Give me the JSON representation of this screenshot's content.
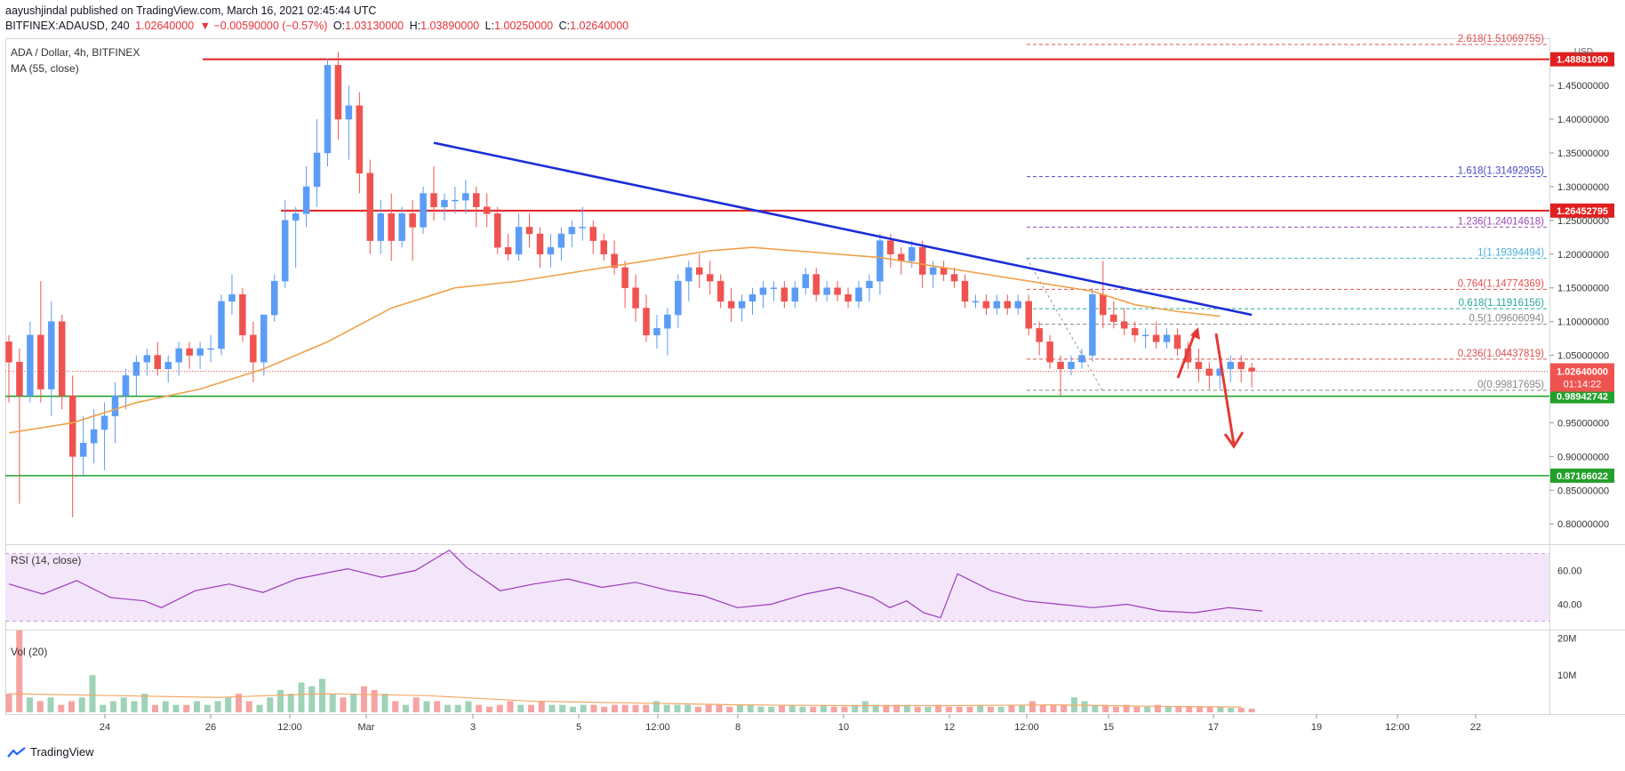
{
  "header": {
    "published_line": "aayushjindal published on TradingView.com, March 16, 2021 02:45:44 UTC",
    "symbol": "BITFINEX:ADAUSD, 240",
    "last": "1.02640000",
    "change": "▼ −0.00590000 (−0.57%)",
    "o_label": "O:",
    "o": "1.03130000",
    "h_label": "H:",
    "h": "1.03890000",
    "l_label": "L:",
    "l": "1.00250000",
    "c_label": "C:",
    "c": "1.02640000"
  },
  "legend": {
    "title": "ADA / Dollar, 4h, BITFINEX",
    "ma": "MA (55, close)",
    "rsi": "RSI (14, close)",
    "vol": "Vol (20)",
    "currency": "USD"
  },
  "footer": {
    "brand": "TradingView"
  },
  "colors": {
    "up": "#5b9cf6",
    "down": "#ef5350",
    "ma": "#f0a14a",
    "trend": "#1b2fd6",
    "resistance": "#e02020",
    "support": "#22a02a",
    "rsi": "#9c3ab8",
    "rsi_band": "#f3e6fb",
    "vol_up": "#9fd3b8",
    "vol_down": "#f6a3a3",
    "vol_ma": "#f3a866",
    "axis_text": "#333333"
  },
  "chart_data": [
    {
      "type": "candlestick",
      "title": "ADA / Dollar, 4h, BITFINEX",
      "x_tick_labels": [
        "24",
        "26",
        "12:00",
        "Mar",
        "3",
        "5",
        "12:00",
        "8",
        "10",
        "12",
        "12:00",
        "15",
        "17",
        "19",
        "12:00",
        "22"
      ],
      "y_tick_labels": [
        "1.45000000",
        "1.40000000",
        "1.35000000",
        "1.30000000",
        "1.25000000",
        "1.20000000",
        "1.15000000",
        "1.10000000",
        "1.05000000",
        "1.00000000",
        "0.95000000",
        "0.90000000",
        "0.85000000",
        "0.80000000"
      ],
      "y_unit": "USD",
      "ylim": [
        0.77,
        1.52
      ],
      "candles_ohlc": [
        [
          1.07,
          1.08,
          0.98,
          1.04
        ],
        [
          1.04,
          1.06,
          0.83,
          0.99
        ],
        [
          0.99,
          1.1,
          0.98,
          1.08
        ],
        [
          1.08,
          1.16,
          0.98,
          1.0
        ],
        [
          1.0,
          1.13,
          0.96,
          1.1
        ],
        [
          1.1,
          1.11,
          0.97,
          0.99
        ],
        [
          0.99,
          1.02,
          0.81,
          0.9
        ],
        [
          0.9,
          0.96,
          0.87,
          0.92
        ],
        [
          0.92,
          0.97,
          0.89,
          0.94
        ],
        [
          0.94,
          0.98,
          0.88,
          0.96
        ],
        [
          0.96,
          1.01,
          0.92,
          0.99
        ],
        [
          0.99,
          1.03,
          0.97,
          1.02
        ],
        [
          1.02,
          1.05,
          0.99,
          1.04
        ],
        [
          1.04,
          1.06,
          1.02,
          1.05
        ],
        [
          1.05,
          1.07,
          1.02,
          1.03
        ],
        [
          1.03,
          1.05,
          1.01,
          1.04
        ],
        [
          1.04,
          1.07,
          1.02,
          1.06
        ],
        [
          1.06,
          1.07,
          1.03,
          1.05
        ],
        [
          1.05,
          1.07,
          1.03,
          1.06
        ],
        [
          1.06,
          1.08,
          1.04,
          1.06
        ],
        [
          1.06,
          1.14,
          1.05,
          1.13
        ],
        [
          1.13,
          1.17,
          1.11,
          1.14
        ],
        [
          1.14,
          1.15,
          1.07,
          1.08
        ],
        [
          1.08,
          1.1,
          1.01,
          1.04
        ],
        [
          1.04,
          1.11,
          1.02,
          1.11
        ],
        [
          1.11,
          1.17,
          1.1,
          1.16
        ],
        [
          1.16,
          1.28,
          1.15,
          1.25
        ],
        [
          1.25,
          1.27,
          1.18,
          1.26
        ],
        [
          1.26,
          1.33,
          1.24,
          1.3
        ],
        [
          1.3,
          1.4,
          1.27,
          1.35
        ],
        [
          1.35,
          1.49,
          1.33,
          1.48
        ],
        [
          1.48,
          1.5,
          1.37,
          1.4
        ],
        [
          1.4,
          1.45,
          1.34,
          1.42
        ],
        [
          1.42,
          1.44,
          1.29,
          1.32
        ],
        [
          1.32,
          1.34,
          1.2,
          1.22
        ],
        [
          1.22,
          1.28,
          1.2,
          1.26
        ],
        [
          1.26,
          1.29,
          1.19,
          1.22
        ],
        [
          1.22,
          1.27,
          1.21,
          1.26
        ],
        [
          1.26,
          1.28,
          1.19,
          1.24
        ],
        [
          1.24,
          1.3,
          1.23,
          1.29
        ],
        [
          1.29,
          1.33,
          1.25,
          1.27
        ],
        [
          1.27,
          1.29,
          1.25,
          1.28
        ],
        [
          1.28,
          1.3,
          1.26,
          1.28
        ],
        [
          1.28,
          1.31,
          1.26,
          1.29
        ],
        [
          1.29,
          1.3,
          1.24,
          1.27
        ],
        [
          1.27,
          1.29,
          1.24,
          1.26
        ],
        [
          1.26,
          1.27,
          1.2,
          1.21
        ],
        [
          1.21,
          1.23,
          1.19,
          1.2
        ],
        [
          1.2,
          1.26,
          1.19,
          1.24
        ],
        [
          1.24,
          1.26,
          1.21,
          1.23
        ],
        [
          1.23,
          1.24,
          1.18,
          1.2
        ],
        [
          1.2,
          1.23,
          1.18,
          1.21
        ],
        [
          1.21,
          1.24,
          1.19,
          1.23
        ],
        [
          1.23,
          1.25,
          1.21,
          1.24
        ],
        [
          1.24,
          1.27,
          1.22,
          1.24
        ],
        [
          1.24,
          1.25,
          1.2,
          1.22
        ],
        [
          1.22,
          1.23,
          1.19,
          1.2
        ],
        [
          1.2,
          1.22,
          1.17,
          1.18
        ],
        [
          1.18,
          1.19,
          1.12,
          1.15
        ],
        [
          1.15,
          1.17,
          1.1,
          1.12
        ],
        [
          1.12,
          1.14,
          1.07,
          1.08
        ],
        [
          1.08,
          1.11,
          1.06,
          1.09
        ],
        [
          1.09,
          1.12,
          1.05,
          1.11
        ],
        [
          1.11,
          1.17,
          1.09,
          1.16
        ],
        [
          1.16,
          1.19,
          1.13,
          1.18
        ],
        [
          1.18,
          1.2,
          1.15,
          1.17
        ],
        [
          1.17,
          1.19,
          1.14,
          1.16
        ],
        [
          1.16,
          1.17,
          1.12,
          1.13
        ],
        [
          1.13,
          1.15,
          1.1,
          1.12
        ],
        [
          1.12,
          1.14,
          1.1,
          1.13
        ],
        [
          1.13,
          1.15,
          1.11,
          1.14
        ],
        [
          1.14,
          1.16,
          1.12,
          1.15
        ],
        [
          1.15,
          1.16,
          1.13,
          1.15
        ],
        [
          1.15,
          1.16,
          1.12,
          1.13
        ],
        [
          1.13,
          1.16,
          1.12,
          1.15
        ],
        [
          1.15,
          1.18,
          1.14,
          1.17
        ],
        [
          1.17,
          1.18,
          1.13,
          1.14
        ],
        [
          1.14,
          1.16,
          1.13,
          1.15
        ],
        [
          1.15,
          1.16,
          1.13,
          1.14
        ],
        [
          1.14,
          1.15,
          1.12,
          1.13
        ],
        [
          1.13,
          1.16,
          1.12,
          1.15
        ],
        [
          1.15,
          1.17,
          1.13,
          1.16
        ],
        [
          1.16,
          1.23,
          1.14,
          1.22
        ],
        [
          1.22,
          1.23,
          1.18,
          1.2
        ],
        [
          1.2,
          1.21,
          1.17,
          1.19
        ],
        [
          1.19,
          1.22,
          1.18,
          1.21
        ],
        [
          1.21,
          1.22,
          1.15,
          1.17
        ],
        [
          1.17,
          1.19,
          1.15,
          1.18
        ],
        [
          1.18,
          1.19,
          1.16,
          1.17
        ],
        [
          1.17,
          1.18,
          1.15,
          1.16
        ],
        [
          1.16,
          1.17,
          1.12,
          1.13
        ],
        [
          1.13,
          1.14,
          1.12,
          1.13
        ],
        [
          1.13,
          1.14,
          1.11,
          1.12
        ],
        [
          1.12,
          1.14,
          1.11,
          1.13
        ],
        [
          1.13,
          1.14,
          1.11,
          1.12
        ],
        [
          1.12,
          1.14,
          1.11,
          1.13
        ],
        [
          1.13,
          1.14,
          1.08,
          1.09
        ],
        [
          1.09,
          1.1,
          1.05,
          1.07
        ],
        [
          1.07,
          1.08,
          1.03,
          1.04
        ],
        [
          1.04,
          1.05,
          0.99,
          1.03
        ],
        [
          1.03,
          1.05,
          1.02,
          1.04
        ],
        [
          1.04,
          1.06,
          1.03,
          1.05
        ],
        [
          1.05,
          1.15,
          1.04,
          1.14
        ],
        [
          1.14,
          1.19,
          1.09,
          1.11
        ],
        [
          1.11,
          1.13,
          1.09,
          1.1
        ],
        [
          1.1,
          1.12,
          1.08,
          1.09
        ],
        [
          1.09,
          1.1,
          1.07,
          1.08
        ],
        [
          1.08,
          1.09,
          1.06,
          1.08
        ],
        [
          1.08,
          1.1,
          1.06,
          1.07
        ],
        [
          1.07,
          1.09,
          1.06,
          1.08
        ],
        [
          1.08,
          1.09,
          1.05,
          1.06
        ],
        [
          1.06,
          1.07,
          1.03,
          1.04
        ],
        [
          1.04,
          1.06,
          1.01,
          1.03
        ],
        [
          1.03,
          1.04,
          1.0,
          1.02
        ],
        [
          1.02,
          1.04,
          1.0,
          1.03
        ],
        [
          1.03,
          1.05,
          1.01,
          1.04
        ],
        [
          1.04,
          1.05,
          1.01,
          1.03
        ],
        [
          1.0313,
          1.0389,
          1.0025,
          1.0264
        ]
      ],
      "ma55": [
        [
          0,
          0.935
        ],
        [
          6,
          0.95
        ],
        [
          12,
          0.98
        ],
        [
          18,
          1.0
        ],
        [
          24,
          1.03
        ],
        [
          30,
          1.07
        ],
        [
          36,
          1.12
        ],
        [
          42,
          1.15
        ],
        [
          48,
          1.16
        ],
        [
          54,
          1.175
        ],
        [
          58,
          1.185
        ],
        [
          62,
          1.195
        ],
        [
          66,
          1.205
        ],
        [
          70,
          1.21
        ],
        [
          74,
          1.205
        ],
        [
          78,
          1.2
        ],
        [
          82,
          1.195
        ],
        [
          86,
          1.185
        ],
        [
          90,
          1.175
        ],
        [
          94,
          1.165
        ],
        [
          98,
          1.155
        ],
        [
          102,
          1.145
        ],
        [
          106,
          1.125
        ],
        [
          110,
          1.115
        ],
        [
          114,
          1.108
        ]
      ],
      "trendline": {
        "from": [
          1.365,
          40
        ],
        "to": [
          1.11,
          117
        ]
      },
      "horizontal_levels": [
        {
          "value": 1.4888109,
          "label": "1.48881090",
          "kind": "resistance"
        },
        {
          "value": 1.26452795,
          "label": "1.26452795",
          "kind": "resistance"
        },
        {
          "value": 0.98942742,
          "label": "0.98942742",
          "kind": "support"
        },
        {
          "value": 0.87166022,
          "label": "0.87166022",
          "kind": "support"
        }
      ],
      "last_price": {
        "value": 1.0264,
        "label": "1.02640000",
        "countdown": "01:14:22"
      },
      "fibonacci": [
        {
          "ratio": "2.618",
          "value": "1.51069755",
          "color": "#e05050"
        },
        {
          "ratio": "1.618",
          "value": "1.31492955",
          "color": "#4a4ac8"
        },
        {
          "ratio": "1.236",
          "value": "1.24014618",
          "color": "#9a4ab8"
        },
        {
          "ratio": "1",
          "value": "1.19394494",
          "color": "#4ab0d8"
        },
        {
          "ratio": "0.764",
          "value": "1.14774369",
          "color": "#e05050"
        },
        {
          "ratio": "0.618",
          "value": "1.11916156",
          "color": "#26a69a"
        },
        {
          "ratio": "0.5",
          "value": "1.09606094",
          "color": "#888888"
        },
        {
          "ratio": "0.236",
          "value": "1.04437819",
          "color": "#e05050"
        },
        {
          "ratio": "0",
          "value": "0.99817695",
          "color": "#888888"
        }
      ]
    },
    {
      "type": "line",
      "title": "RSI (14, close)",
      "y_tick_labels": [
        "60.00",
        "40.00"
      ],
      "ylim": [
        25,
        75
      ],
      "band": [
        70,
        30
      ],
      "values": [
        [
          0,
          52
        ],
        [
          4,
          46
        ],
        [
          8,
          54
        ],
        [
          12,
          44
        ],
        [
          16,
          42
        ],
        [
          18,
          38
        ],
        [
          22,
          48
        ],
        [
          26,
          52
        ],
        [
          30,
          47
        ],
        [
          34,
          55
        ],
        [
          40,
          61
        ],
        [
          44,
          56
        ],
        [
          48,
          60
        ],
        [
          50,
          66
        ],
        [
          52,
          72
        ],
        [
          54,
          62
        ],
        [
          58,
          48
        ],
        [
          62,
          52
        ],
        [
          66,
          55
        ],
        [
          70,
          50
        ],
        [
          74,
          53
        ],
        [
          78,
          48
        ],
        [
          82,
          45
        ],
        [
          86,
          38
        ],
        [
          90,
          40
        ],
        [
          94,
          46
        ],
        [
          98,
          50
        ],
        [
          102,
          44
        ],
        [
          104,
          38
        ],
        [
          106,
          42
        ],
        [
          108,
          35
        ],
        [
          110,
          32
        ],
        [
          112,
          58
        ],
        [
          116,
          48
        ],
        [
          120,
          42
        ],
        [
          124,
          40
        ],
        [
          128,
          38
        ],
        [
          132,
          40
        ],
        [
          136,
          36
        ],
        [
          140,
          35
        ],
        [
          144,
          38
        ],
        [
          148,
          36
        ]
      ]
    },
    {
      "type": "bar",
      "title": "Vol (20)",
      "y_tick_labels": [
        "20M",
        "10M"
      ],
      "ylim": [
        0,
        22000000
      ],
      "values": [
        5,
        22,
        4,
        3,
        4,
        2,
        3,
        4,
        10,
        2,
        3,
        4,
        3,
        5,
        2,
        3,
        2,
        2,
        3,
        2,
        3,
        4,
        5,
        3,
        2,
        4,
        6,
        5,
        8,
        7,
        9,
        5,
        4,
        5,
        7,
        6,
        5,
        3,
        2,
        4,
        3,
        3,
        2,
        2,
        3,
        2,
        1.5,
        2,
        3,
        2,
        2,
        3,
        2,
        2,
        1.5,
        2,
        2,
        1.5,
        2,
        2,
        2,
        2,
        3,
        2,
        2,
        2,
        1.5,
        2,
        2,
        1.5,
        2,
        2,
        1.5,
        1.5,
        2,
        2,
        1.5,
        1.5,
        2,
        1.5,
        1.5,
        2,
        3,
        2,
        2,
        2,
        2,
        1.5,
        1.5,
        2,
        1.5,
        1.5,
        1.5,
        2,
        1.5,
        1.5,
        2,
        2,
        3,
        2,
        2,
        2,
        4,
        3,
        2,
        2,
        1.5,
        2,
        1.5,
        1.5,
        2,
        1.5,
        1.5,
        1.5,
        1.5,
        1.5,
        1.5,
        1.2,
        1.2,
        1
      ],
      "value_unit": "M",
      "ma": [
        [
          0,
          5
        ],
        [
          10,
          4.5
        ],
        [
          20,
          4
        ],
        [
          30,
          5
        ],
        [
          40,
          4.5
        ],
        [
          50,
          3
        ],
        [
          60,
          2.5
        ],
        [
          70,
          2
        ],
        [
          80,
          1.8
        ],
        [
          90,
          1.8
        ],
        [
          100,
          2
        ],
        [
          110,
          1.6
        ],
        [
          118,
          1.4
        ]
      ]
    }
  ]
}
